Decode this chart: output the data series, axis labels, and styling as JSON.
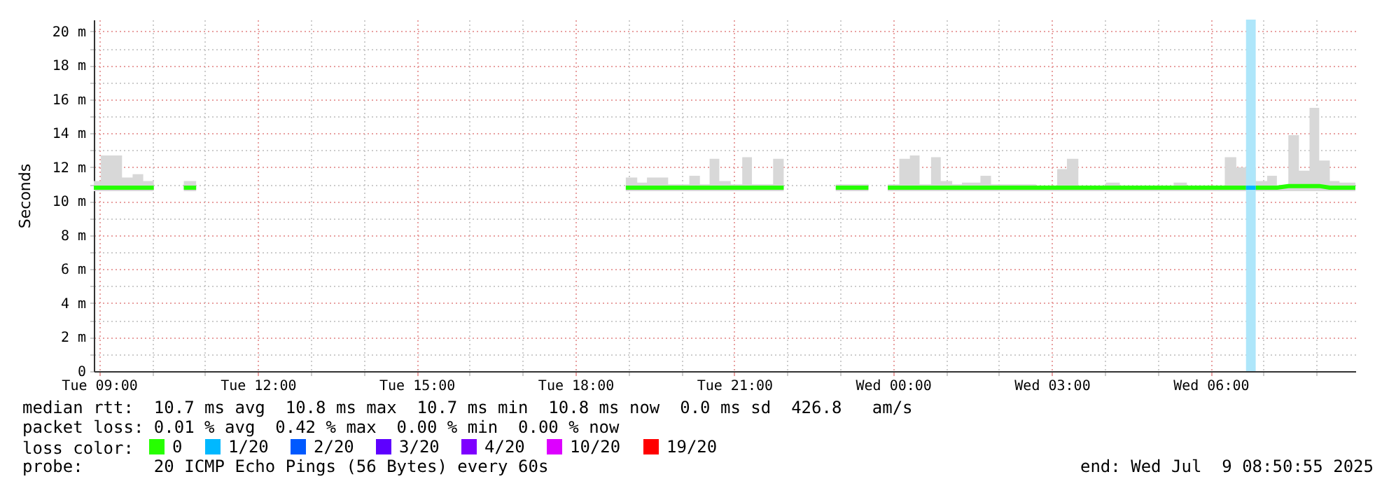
{
  "chart_data": {
    "type": "line",
    "ylabel": "Seconds",
    "legend_title": "loss color:",
    "legend": "bottom",
    "grid": true,
    "xlim": [
      "2025-07-08T08:54",
      "2025-07-09T08:44"
    ],
    "xticks": [
      {
        "value": "2025-07-08T09:00",
        "label": "Tue 09:00"
      },
      {
        "value": "2025-07-08T10:00",
        "label": null
      },
      {
        "value": "2025-07-08T11:00",
        "label": null
      },
      {
        "value": "2025-07-08T12:00",
        "label": "Tue 12:00"
      },
      {
        "value": "2025-07-08T13:00",
        "label": null
      },
      {
        "value": "2025-07-08T14:00",
        "label": null
      },
      {
        "value": "2025-07-08T15:00",
        "label": "Tue 15:00"
      },
      {
        "value": "2025-07-08T16:00",
        "label": null
      },
      {
        "value": "2025-07-08T17:00",
        "label": null
      },
      {
        "value": "2025-07-08T18:00",
        "label": "Tue 18:00"
      },
      {
        "value": "2025-07-08T19:00",
        "label": null
      },
      {
        "value": "2025-07-08T20:00",
        "label": null
      },
      {
        "value": "2025-07-08T21:00",
        "label": "Tue 21:00"
      },
      {
        "value": "2025-07-08T22:00",
        "label": null
      },
      {
        "value": "2025-07-08T23:00",
        "label": null
      },
      {
        "value": "2025-07-09T00:00",
        "label": "Wed 00:00"
      },
      {
        "value": "2025-07-09T01:00",
        "label": null
      },
      {
        "value": "2025-07-09T02:00",
        "label": null
      },
      {
        "value": "2025-07-09T03:00",
        "label": "Wed 03:00"
      },
      {
        "value": "2025-07-09T04:00",
        "label": null
      },
      {
        "value": "2025-07-09T05:00",
        "label": null
      },
      {
        "value": "2025-07-09T06:00",
        "label": "Wed 06:00"
      },
      {
        "value": "2025-07-09T07:00",
        "label": null
      },
      {
        "value": "2025-07-09T08:00",
        "label": null
      }
    ],
    "ylim": [
      0,
      20.7
    ],
    "yticks": [
      0,
      {
        "value": 1,
        "label": null
      },
      {
        "value": 2,
        "label": "2 m"
      },
      {
        "value": 3,
        "label": null
      },
      {
        "value": 4,
        "label": "4 m"
      },
      {
        "value": 5,
        "label": null
      },
      {
        "value": 6,
        "label": "6 m"
      },
      {
        "value": 7,
        "label": null
      },
      {
        "value": 8,
        "label": "8 m"
      },
      {
        "value": 9,
        "label": null
      },
      {
        "value": 10,
        "label": "10 m"
      },
      {
        "value": 11,
        "label": null
      },
      {
        "value": 12,
        "label": "12 m"
      },
      {
        "value": 13,
        "label": null
      },
      {
        "value": 14,
        "label": "14 m"
      },
      {
        "value": 15,
        "label": null
      },
      {
        "value": 16,
        "label": "16 m"
      },
      {
        "value": 17,
        "label": null
      },
      {
        "value": 18,
        "label": "18 m"
      },
      {
        "value": 19,
        "label": null
      },
      {
        "value": 20,
        "label": "20 m"
      }
    ],
    "bands": [
      {
        "axis": "x",
        "from": "2025-07-09T06:40",
        "to": "2025-07-09T06:51",
        "color": "#aee6fa"
      }
    ],
    "series": [
      {
        "name": "0",
        "color": "#26ff00",
        "x": [
          "2025-07-08T08:54",
          "2025-07-08T09:02",
          "2025-07-08T09:26",
          "2025-07-08T09:38",
          "2025-07-08T09:50",
          "2025-07-08T10:02",
          "2025-07-08T10:20",
          "2025-07-08T10:36",
          "2025-07-08T10:50",
          "2025-07-08T15:00",
          "2025-07-08T18:57",
          "2025-07-08T19:10",
          "2025-07-08T19:21",
          "2025-07-08T19:34",
          "2025-07-08T19:45",
          "2025-07-08T20:09",
          "2025-07-08T20:21",
          "2025-07-08T20:32",
          "2025-07-08T20:43",
          "2025-07-08T20:56",
          "2025-07-08T21:09",
          "2025-07-08T21:20",
          "2025-07-08T21:33",
          "2025-07-08T21:44",
          "2025-07-08T21:56",
          "2025-07-08T22:30",
          "2025-07-08T22:55",
          "2025-07-08T23:32",
          "2025-07-08T23:45",
          "2025-07-08T23:54",
          "2025-07-09T00:07",
          "2025-07-09T00:19",
          "2025-07-09T00:30",
          "2025-07-09T00:43",
          "2025-07-09T00:54",
          "2025-07-09T01:07",
          "2025-07-09T01:18",
          "2025-07-09T01:39",
          "2025-07-09T01:51",
          "2025-07-09T02:06",
          "2025-07-09T02:42",
          "2025-07-09T03:06",
          "2025-07-09T03:17",
          "2025-07-09T03:30",
          "2025-07-09T04:01",
          "2025-07-09T04:17",
          "2025-07-09T05:18",
          "2025-07-09T05:33",
          "2025-07-09T06:16",
          "2025-07-09T06:29",
          "2025-07-09T06:40",
          "2025-07-09T06:45",
          "2025-07-09T06:51",
          "2025-07-09T07:04",
          "2025-07-09T07:15",
          "2025-07-09T07:28",
          "2025-07-09T07:40",
          "2025-07-09T07:52",
          "2025-07-09T08:03",
          "2025-07-09T08:15",
          "2025-07-09T08:26",
          "2025-07-09T08:44"
        ],
        "values": [
          10.8,
          10.8,
          10.8,
          10.8,
          10.8,
          10.8,
          null,
          10.8,
          10.8,
          null,
          10.8,
          10.8,
          10.8,
          10.8,
          10.8,
          10.8,
          10.8,
          10.8,
          10.8,
          10.8,
          10.8,
          10.8,
          10.8,
          10.8,
          10.8,
          null,
          10.8,
          10.8,
          null,
          10.8,
          10.8,
          10.8,
          10.8,
          10.8,
          10.8,
          10.8,
          10.8,
          10.8,
          10.8,
          10.8,
          10.8,
          10.8,
          10.8,
          10.8,
          10.8,
          10.8,
          10.8,
          10.8,
          10.8,
          10.8,
          10.8,
          null,
          10.8,
          10.8,
          10.8,
          10.9,
          10.9,
          10.9,
          10.9,
          10.8,
          10.8,
          10.8
        ],
        "lower": [
          10.6,
          10.6,
          10.6,
          10.6,
          10.6,
          10.6,
          null,
          10.6,
          10.6,
          null,
          10.6,
          10.6,
          10.6,
          10.6,
          10.6,
          10.6,
          10.6,
          10.6,
          10.6,
          10.6,
          10.6,
          10.6,
          10.6,
          10.6,
          10.6,
          null,
          10.6,
          10.6,
          null,
          10.6,
          10.6,
          10.6,
          10.6,
          10.6,
          10.6,
          10.6,
          10.6,
          10.6,
          10.6,
          10.6,
          10.6,
          10.6,
          10.6,
          10.6,
          10.6,
          10.6,
          10.6,
          10.6,
          10.6,
          10.6,
          10.6,
          10.6,
          10.6,
          10.6,
          10.6,
          10.6,
          10.6,
          10.6,
          10.6,
          10.6,
          10.6,
          10.6
        ],
        "upper": [
          11.2,
          12.7,
          11.4,
          11.6,
          11.2,
          11.2,
          null,
          11.2,
          11.2,
          null,
          11.4,
          11.1,
          11.4,
          11.4,
          11.0,
          11.5,
          11.0,
          12.5,
          11.2,
          11.0,
          12.6,
          11.0,
          11.0,
          12.5,
          12.5,
          null,
          11.0,
          11.0,
          null,
          11.0,
          12.5,
          12.7,
          11.0,
          12.6,
          11.2,
          11.0,
          11.1,
          11.5,
          11.0,
          11.0,
          10.8,
          11.9,
          12.5,
          10.8,
          11.1,
          10.8,
          11.1,
          10.8,
          12.6,
          12.0,
          12.0,
          12.0,
          11.2,
          11.5,
          10.9,
          13.9,
          11.8,
          15.5,
          12.4,
          11.2,
          11.1,
          11.1
        ]
      },
      {
        "name": "1/20",
        "color": "#00b8ff",
        "x": [
          "2025-07-09T06:40",
          "2025-07-09T06:51"
        ],
        "values": [
          10.8,
          10.8
        ]
      },
      {
        "name": "2/20",
        "color": "#0059ff"
      },
      {
        "name": "3/20",
        "color": "#5e00ff"
      },
      {
        "name": "4/20",
        "color": "#7e00ff"
      },
      {
        "name": "10/20",
        "color": "#dd00ff"
      },
      {
        "name": "19/20",
        "color": "#ff0000"
      }
    ],
    "annotations": [
      "median rtt:  10.7 ms avg  10.8 ms max  10.7 ms min  10.8 ms now  0.0 ms sd  426.8   am/s",
      "packet loss: 0.01 % avg  0.42 % max  0.00 % min  0.00 % now",
      "probe:       20 ICMP Echo Pings (56 Bytes) every 60s",
      "end: Wed Jul  9 08:50:55 2025"
    ]
  }
}
